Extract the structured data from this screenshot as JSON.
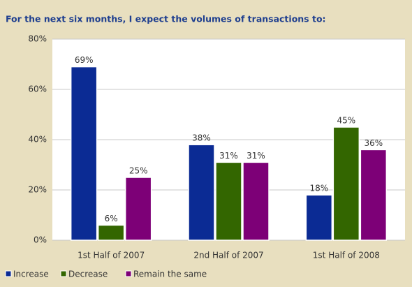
{
  "chart_data": {
    "type": "bar",
    "title": "For the next six months, I expect the volumes of transactions to:",
    "categories": [
      "1st Half of 2007",
      "2nd Half of 2007",
      "1st Half of 2008"
    ],
    "series": [
      {
        "name": "Increase",
        "color": "#0b2b94",
        "values": [
          69,
          38,
          18
        ],
        "value_labels": [
          "69%",
          "38%",
          "18%"
        ]
      },
      {
        "name": "Decrease",
        "color": "#336600",
        "values": [
          6,
          31,
          45
        ],
        "value_labels": [
          "6%",
          "31%",
          "45%"
        ]
      },
      {
        "name": "Remain the same",
        "color": "#7d0077",
        "values": [
          25,
          31,
          36
        ],
        "value_labels": [
          "25%",
          "31%",
          "36%"
        ]
      }
    ],
    "ylim": [
      0,
      80
    ],
    "yticks": [
      {
        "value": 0,
        "label": "0%"
      },
      {
        "value": 20,
        "label": "20%"
      },
      {
        "value": 40,
        "label": "40%"
      },
      {
        "value": 60,
        "label": "60%"
      },
      {
        "value": 80,
        "label": "80%"
      }
    ],
    "grid": true
  }
}
